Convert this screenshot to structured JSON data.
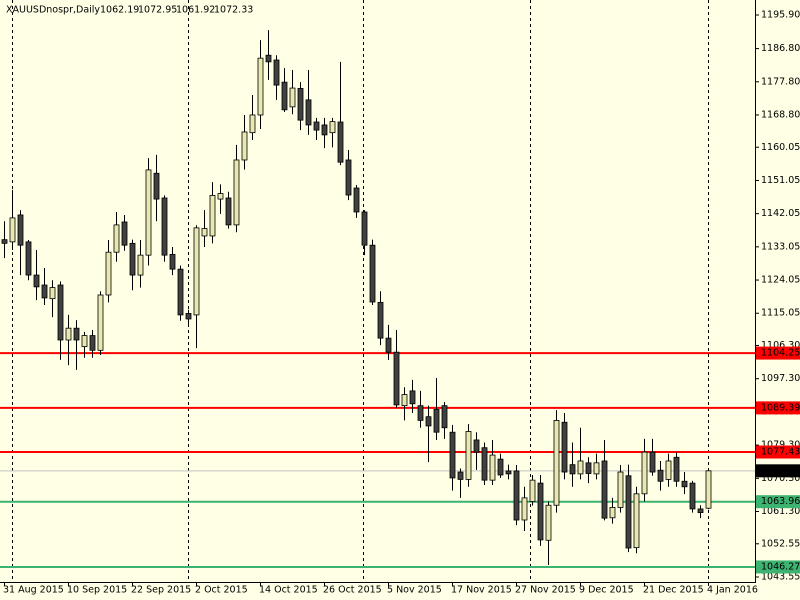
{
  "chart_data": {
    "type": "candlestick",
    "title": "XAUUSDnospr,Daily",
    "categories": [
      "31 Aug 2015",
      null,
      null,
      null,
      null,
      null,
      null,
      null,
      "10 Sep 2015",
      null,
      null,
      null,
      null,
      null,
      null,
      null,
      "22 Sep 2015",
      null,
      null,
      null,
      null,
      null,
      null,
      null,
      "2 Oct 2015",
      null,
      null,
      null,
      null,
      null,
      null,
      null,
      "14 Oct 2015",
      null,
      null,
      null,
      null,
      null,
      null,
      null,
      "26 Oct 2015",
      null,
      null,
      null,
      null,
      null,
      null,
      null,
      "5 Nov 2015",
      null,
      null,
      null,
      null,
      null,
      null,
      null,
      "17 Nov 2015",
      null,
      null,
      null,
      null,
      null,
      null,
      null,
      "27 Nov 2015",
      null,
      null,
      null,
      null,
      null,
      null,
      null,
      "9 Dec 2015",
      null,
      null,
      null,
      null,
      null,
      null,
      null,
      "21 Dec 2015",
      null,
      null,
      null,
      null,
      null,
      null,
      null,
      "4 Jan 2016"
    ],
    "open": [
      1135,
      1134.4,
      1141.7,
      1134.4,
      1125.4,
      1122.7,
      1119,
      1122.7,
      1107.8,
      1111,
      1106,
      1109,
      1105,
      1120,
      1131.6,
      1139.8,
      1134,
      1125.4,
      1130.8,
      1153,
      1146.3,
      1131,
      1127,
      1115,
      1114.6,
      1136,
      1136,
      1146,
      1146.3,
      1139,
      1156.6,
      1164,
      1168.8,
      1185,
      1183.7,
      1177.7,
      1171,
      1176,
      1172.9,
      1166.9,
      1166.1,
      1164,
      1166.9,
      1156.6,
      1149,
      1142.5,
      1133.5,
      1118,
      1108.3,
      1104.5,
      1090,
      1094,
      1090,
      1087,
      1089,
      1090,
      1082.8,
      1072,
      1070,
      1080.7,
      1078.6,
      1069.8,
      1075.5,
      1072.3,
      1072.3,
      1059,
      1064,
      1069,
      1053.5,
      1063,
      1085.5,
      1074,
      1071.5,
      1074.5,
      1071.5,
      1075,
      1059.6,
      1062.4,
      1071,
      1051.5,
      1066.1,
      1077.4,
      1072.5,
      1070,
      1076,
      1069.5,
      1069,
      1062,
      1062.19
    ],
    "high": [
      1140,
      1148.5,
      1143,
      1134.9,
      1132.2,
      1127.3,
      1124,
      1123.7,
      1114.6,
      1113.2,
      1110,
      1110.5,
      1121,
      1134.9,
      1142.5,
      1141.7,
      1135,
      1134.9,
      1157.1,
      1158,
      1147,
      1133,
      1128,
      1116,
      1138.9,
      1143,
      1150.6,
      1150,
      1148,
      1160.7,
      1168.8,
      1174.2,
      1189.1,
      1191.8,
      1185,
      1181.5,
      1181,
      1177.7,
      1181,
      1168,
      1168,
      1168,
      1183.2,
      1159.3,
      1149.8,
      1143,
      1135,
      1121,
      1111.9,
      1110.5,
      1095,
      1097,
      1094,
      1090,
      1097.5,
      1091,
      1084.8,
      1073,
      1085,
      1082.8,
      1080,
      1080.7,
      1077,
      1074,
      1073.9,
      1068,
      1071.2,
      1071.2,
      1064,
      1088.8,
      1088,
      1080,
      1084,
      1076,
      1077,
      1080.7,
      1065,
      1073.9,
      1074,
      1068,
      1081,
      1081,
      1075,
      1077,
      1077.4,
      1072,
      1069.6,
      1063,
      1072.95
    ],
    "low": [
      1130,
      1132.2,
      1125.4,
      1124,
      1118.6,
      1117.3,
      1114,
      1102.4,
      1101,
      1099.7,
      1103,
      1103,
      1103.7,
      1118,
      1129,
      1132,
      1121.3,
      1122,
      1128,
      1140,
      1129,
      1125.4,
      1113,
      1112,
      1105.6,
      1133,
      1134,
      1142,
      1138,
      1137,
      1154,
      1162,
      1165,
      1178.3,
      1172.9,
      1169.6,
      1169,
      1164.7,
      1163.4,
      1162,
      1159.8,
      1160,
      1155.2,
      1145.7,
      1140.9,
      1130.8,
      1117.3,
      1106.4,
      1102.4,
      1089.4,
      1086,
      1088,
      1084,
      1074.7,
      1080.7,
      1081,
      1067,
      1065,
      1068,
      1072.6,
      1068.5,
      1068.5,
      1070.4,
      1070,
      1057.6,
      1056,
      1062.9,
      1052,
      1046.8,
      1061,
      1070,
      1068,
      1070,
      1069,
      1070,
      1058.9,
      1058,
      1061,
      1050.3,
      1050,
      1064,
      1071,
      1067,
      1068,
      1068,
      1066,
      1061,
      1059.5,
      1061.92
    ],
    "close": [
      1134,
      1140.9,
      1133.5,
      1125.4,
      1122.2,
      1119.2,
      1122,
      1107.8,
      1111,
      1107.8,
      1109,
      1105,
      1120,
      1131.6,
      1139,
      1133.5,
      1125.4,
      1130.8,
      1153.9,
      1146,
      1130.8,
      1127,
      1114.6,
      1113.5,
      1138.2,
      1138,
      1147,
      1147.5,
      1139,
      1156.6,
      1164.2,
      1168.8,
      1184.2,
      1183.2,
      1176.9,
      1170.2,
      1176.1,
      1167.4,
      1166.1,
      1164.7,
      1163.4,
      1167,
      1156,
      1147.1,
      1142.5,
      1133.5,
      1118.1,
      1108.3,
      1104.5,
      1090.2,
      1093,
      1090.5,
      1086,
      1084.5,
      1082.8,
      1084,
      1070.4,
      1070,
      1083,
      1077.4,
      1069.8,
      1076.6,
      1071.2,
      1071.5,
      1059,
      1065,
      1069.8,
      1053.6,
      1063,
      1086,
      1072,
      1071.5,
      1075,
      1071.6,
      1074.5,
      1059.5,
      1062.4,
      1072,
      1051.4,
      1066.1,
      1077.4,
      1072,
      1069.5,
      1075,
      1069.5,
      1068,
      1062,
      1061,
      1072.33
    ],
    "up_color": "#e8e8b0",
    "down_color": "#404040",
    "levels": [
      {
        "value": 1104.25,
        "color": "#ff0000"
      },
      {
        "value": 1089.39,
        "color": "#ff0000"
      },
      {
        "value": 1077.43,
        "color": "#ff0000"
      },
      {
        "value": 1063.96,
        "color": "#3cb371"
      },
      {
        "value": 1046.27,
        "color": "#3cb371"
      }
    ],
    "ylim": [
      1042.19,
      1199.97
    ],
    "yticks": [
      {
        "value": 1195.9,
        "label": "1195.90"
      },
      {
        "value": 1186.8,
        "label": "1186.80"
      },
      {
        "value": 1177.8,
        "label": "1177.80"
      },
      {
        "value": 1168.8,
        "label": "1168.80"
      },
      1160.05,
      1151.05,
      1142.05,
      1133.05,
      1124.05,
      1115.05,
      {
        "value": 1106.3,
        "label": "1106.30"
      },
      {
        "value": 1097.3,
        "label": "1097.30"
      },
      {
        "value": 1088.3,
        "label": "1088.30"
      },
      {
        "value": 1079.3,
        "label": "1079.30"
      },
      {
        "value": 1070.3,
        "label": "1070.30"
      },
      {
        "value": 1061.3,
        "label": "1061.30"
      },
      1052.55,
      1043.55
    ],
    "grid": false
  }
}
